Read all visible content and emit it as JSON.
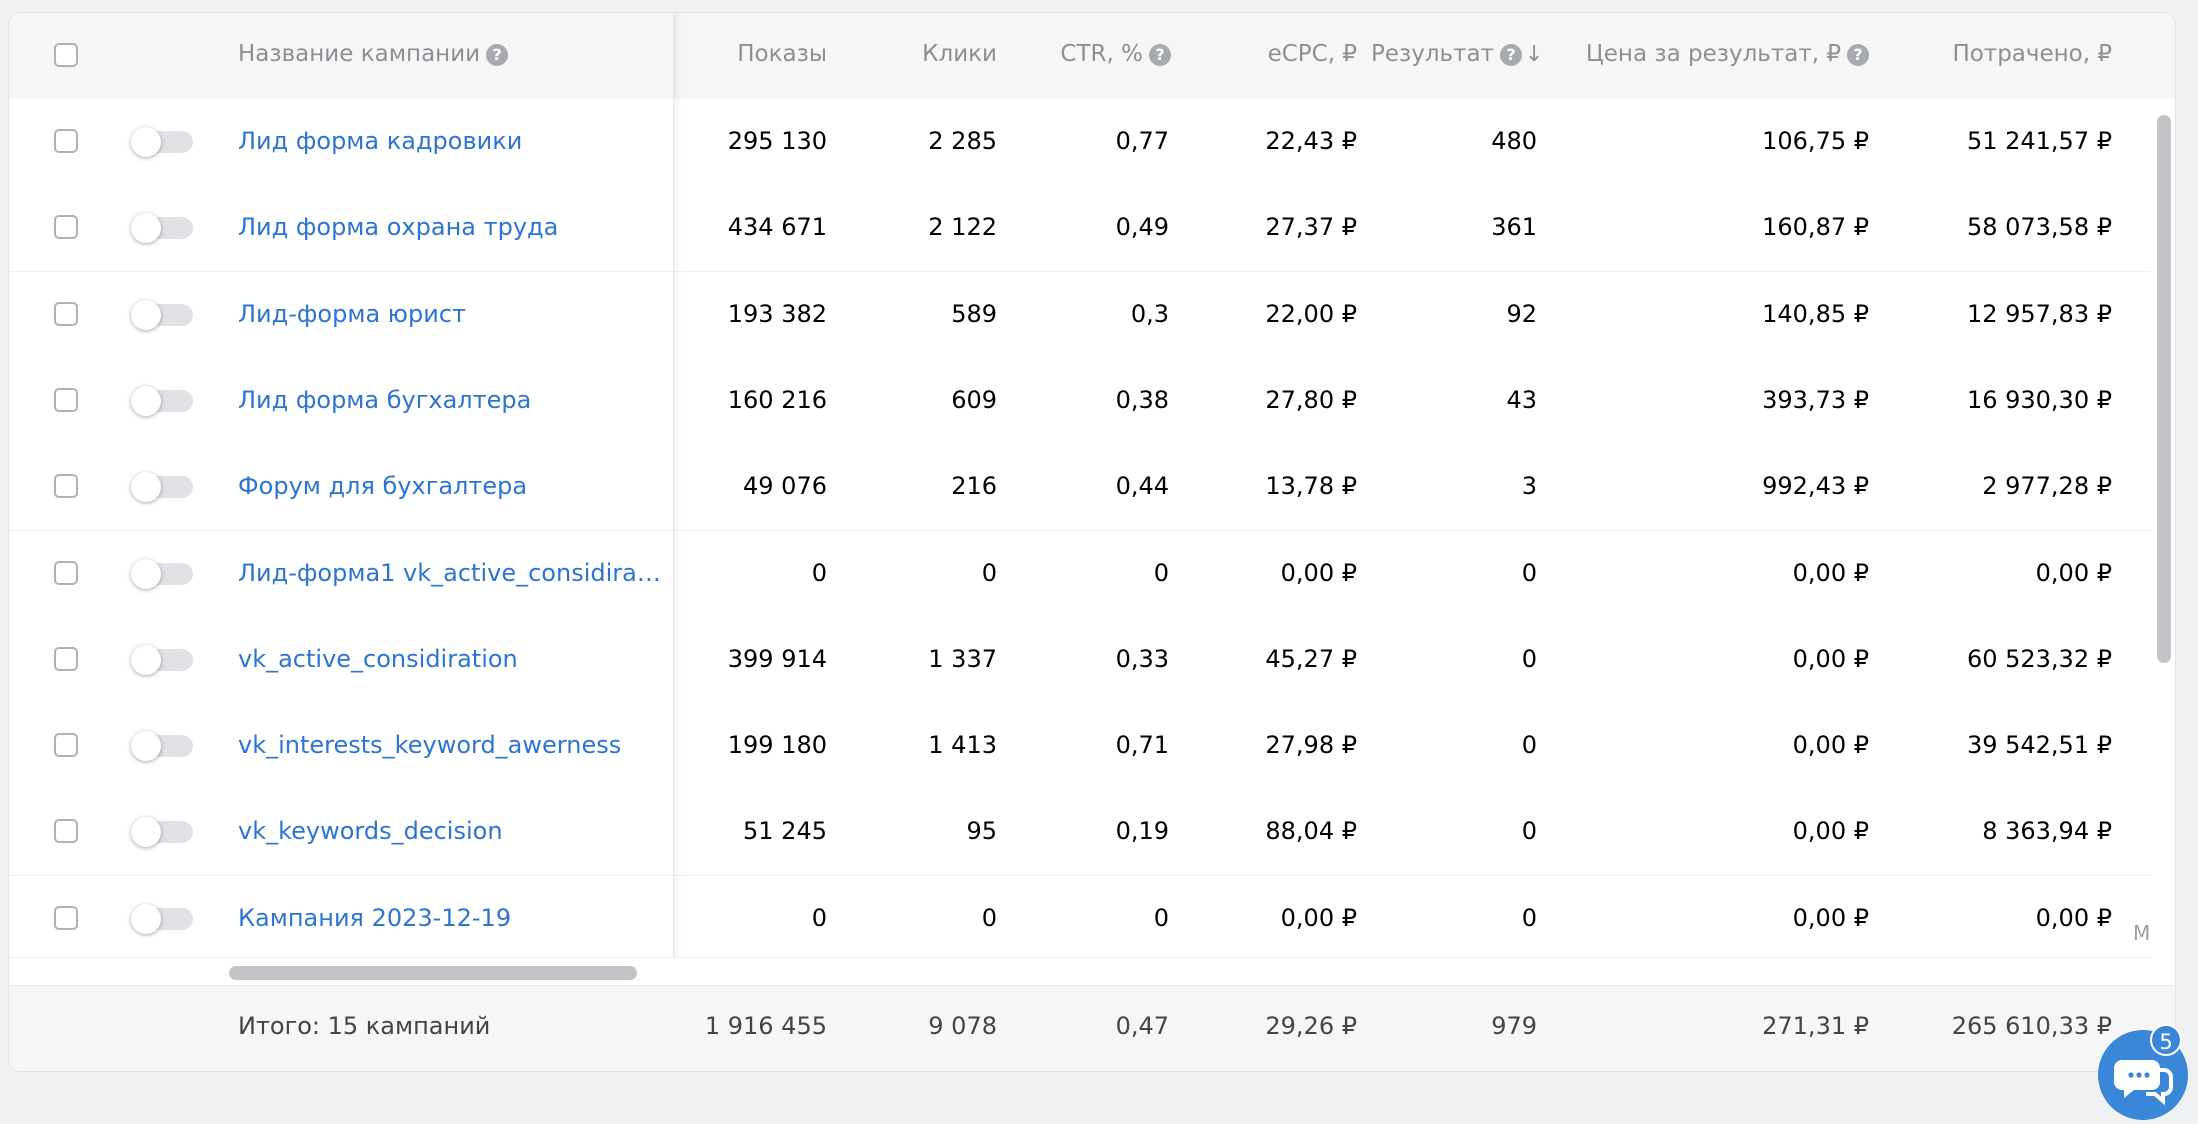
{
  "header": {
    "name": "Название кампании",
    "impressions": "Показы",
    "clicks": "Клики",
    "ctr": "CTR, %",
    "ecpc": "eCPC, ₽",
    "result": "Результат",
    "price_per_result": "Цена за результат, ₽",
    "spent": "Потрачено, ₽"
  },
  "rows": [
    {
      "name": "Лид форма кадровики",
      "impressions": "295 130",
      "clicks": "2 285",
      "ctr": "0,77",
      "ecpc": "22,43 ₽",
      "result": "480",
      "price": "106,75 ₽",
      "spent": "51 241,57 ₽"
    },
    {
      "name": "Лид форма охрана труда",
      "impressions": "434 671",
      "clicks": "2 122",
      "ctr": "0,49",
      "ecpc": "27,37 ₽",
      "result": "361",
      "price": "160,87 ₽",
      "spent": "58 073,58 ₽"
    },
    {
      "name": "Лид-форма юрист",
      "impressions": "193 382",
      "clicks": "589",
      "ctr": "0,3",
      "ecpc": "22,00 ₽",
      "result": "92",
      "price": "140,85 ₽",
      "spent": "12 957,83 ₽"
    },
    {
      "name": "Лид форма бугхалтера",
      "impressions": "160 216",
      "clicks": "609",
      "ctr": "0,38",
      "ecpc": "27,80 ₽",
      "result": "43",
      "price": "393,73 ₽",
      "spent": "16 930,30 ₽"
    },
    {
      "name": "Форум для бухгалтера",
      "impressions": "49 076",
      "clicks": "216",
      "ctr": "0,44",
      "ecpc": "13,78 ₽",
      "result": "3",
      "price": "992,43 ₽",
      "spent": "2 977,28 ₽"
    },
    {
      "name": "Лид-форма1 vk_active_considirat...",
      "impressions": "0",
      "clicks": "0",
      "ctr": "0",
      "ecpc": "0,00 ₽",
      "result": "0",
      "price": "0,00 ₽",
      "spent": "0,00 ₽"
    },
    {
      "name": "vk_active_considiration",
      "impressions": "399 914",
      "clicks": "1 337",
      "ctr": "0,33",
      "ecpc": "45,27 ₽",
      "result": "0",
      "price": "0,00 ₽",
      "spent": "60 523,32 ₽"
    },
    {
      "name": "vk_interests_keyword_awerness",
      "impressions": "199 180",
      "clicks": "1 413",
      "ctr": "0,71",
      "ecpc": "27,98 ₽",
      "result": "0",
      "price": "0,00 ₽",
      "spent": "39 542,51 ₽"
    },
    {
      "name": "vk_keywords_decision",
      "impressions": "51 245",
      "clicks": "95",
      "ctr": "0,19",
      "ecpc": "88,04 ₽",
      "result": "0",
      "price": "0,00 ₽",
      "spent": "8 363,94 ₽"
    },
    {
      "name": "Кампания 2023-12-19",
      "impressions": "0",
      "clicks": "0",
      "ctr": "0",
      "ecpc": "0,00 ₽",
      "result": "0",
      "price": "0,00 ₽",
      "spent": "0,00 ₽"
    }
  ],
  "totals": {
    "label": "Итого: 15 кампаний",
    "impressions": "1 916 455",
    "clicks": "9 078",
    "ctr": "0,47",
    "ecpc": "29,26 ₽",
    "result": "979",
    "price": "271,31 ₽",
    "spent": "265 610,33 ₽"
  },
  "truncated_col_text": "М",
  "chat": {
    "badge_count": "5",
    "icon": "chat-bubbles-icon"
  },
  "colors": {
    "link": "#2d74d3",
    "accent": "#3a86d8",
    "header_bg": "#f6f6f7"
  }
}
